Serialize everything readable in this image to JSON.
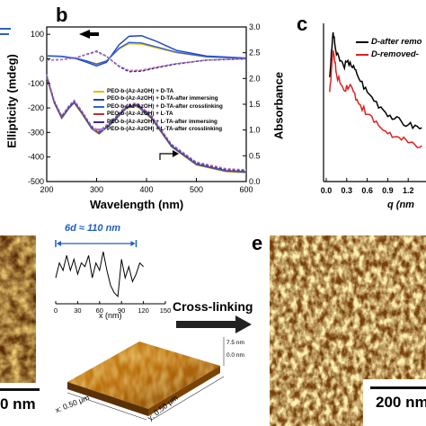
{
  "panel_b": {
    "label": "b",
    "ylabel_left": "Ellipticity (mdeg)",
    "ylabel_right": "Absorbance",
    "xlabel": "Wavelength (nm)",
    "x_ticks": [
      "200",
      "300",
      "400",
      "500",
      "600"
    ],
    "y_left_ticks": [
      "100",
      "0",
      "-100",
      "-200",
      "-300",
      "-400",
      "-500"
    ],
    "y_right_ticks": [
      "3.0",
      "2.5",
      "2.0",
      "1.5",
      "1.0",
      "0.5",
      "0.0"
    ],
    "legend": [
      {
        "text": "PEO-b-(Az-AzOH) + D-TA",
        "color": "#e8b800",
        "dash": false
      },
      {
        "text": "PEO-b-(Az-AzOH) + D-TA-after immersing",
        "color": "#1f3fbf",
        "dash": false
      },
      {
        "text": "PEO-b-(Az-AzOH) + D-TA-after crosslinking",
        "color": "#2f62d8",
        "dash": false
      },
      {
        "text": "PEO-b-(Az-AzOH) + L-TA",
        "color": "#c03030",
        "dash": true
      },
      {
        "text": "PEO-b-(Az-AzOH) + L-TA-after immersing",
        "color": "#3a2a90",
        "dash": true
      },
      {
        "text": "PEO-b-(Az-AzOH) + L-TA-after crosslinking",
        "color": "#b070c0",
        "dash": true
      }
    ]
  },
  "panel_c": {
    "label": "c",
    "legend": [
      {
        "text": "D-after remo",
        "color": "#000000"
      },
      {
        "text": "D-removed-",
        "color": "#e02020"
      }
    ],
    "x_ticks": [
      "0.0",
      "0.3",
      "0.6",
      "0.9",
      "1.2"
    ],
    "xlabel": "q (nm"
  },
  "panel_d": {
    "scale_label": "0 nm",
    "annotation": "6d ≈ 110 nm",
    "profile_xlabel": "x (nm)",
    "profile_x_ticks": [
      "0",
      "30",
      "60",
      "90",
      "120",
      "150"
    ],
    "z_ticks": [
      "7.5 nm",
      "0.0 nm"
    ],
    "axis_x": "x: 0.50 μm",
    "axis_y": "y: 0.50 μm"
  },
  "arrow_label": "Cross-linking",
  "panel_e": {
    "label": "e",
    "scale_label": "200 nm"
  },
  "chart_data": [
    {
      "type": "line",
      "title": "",
      "xlabel": "Wavelength (nm)",
      "ylabel": "Ellipticity (mdeg)",
      "y2label": "Absorbance",
      "xlim": [
        200,
        600
      ],
      "ylim": [
        -500,
        130
      ],
      "y2lim": [
        0.0,
        3.0
      ],
      "series": [
        {
          "name": "PEO-b-(Az-AzOH) + D-TA",
          "axis": "left",
          "x": [
            200,
            230,
            260,
            280,
            300,
            320,
            345,
            365,
            390,
            420,
            460,
            520,
            600
          ],
          "values": [
            12,
            10,
            2,
            -8,
            -20,
            -8,
            40,
            62,
            60,
            45,
            25,
            8,
            2
          ]
        },
        {
          "name": "PEO-b-(Az-AzOH) + D-TA-after immersing",
          "axis": "left",
          "x": [
            200,
            230,
            260,
            280,
            300,
            320,
            345,
            365,
            390,
            420,
            460,
            520,
            600
          ],
          "values": [
            10,
            8,
            0,
            -12,
            -25,
            -12,
            50,
            80,
            82,
            62,
            30,
            10,
            3
          ]
        },
        {
          "name": "PEO-b-(Az-AzOH) + L-TA",
          "axis": "left",
          "x": [
            200,
            230,
            260,
            280,
            300,
            320,
            345,
            365,
            390,
            420,
            460,
            520,
            600
          ],
          "values": [
            -5,
            -3,
            5,
            18,
            30,
            10,
            -30,
            -50,
            -48,
            -35,
            -20,
            -5,
            0
          ]
        },
        {
          "name": "PEO-b-(Az-AzOH) + D-TA",
          "axis": "right",
          "x": [
            200,
            215,
            230,
            245,
            255,
            270,
            290,
            305,
            330,
            360,
            380,
            410,
            450,
            500,
            560,
            600
          ],
          "values": [
            2.05,
            1.55,
            1.25,
            1.45,
            1.55,
            1.35,
            1.05,
            0.95,
            1.15,
            1.45,
            1.5,
            1.25,
            0.7,
            0.35,
            0.22,
            0.2
          ]
        }
      ]
    },
    {
      "type": "line",
      "title": "",
      "xlabel": "q (nm",
      "x_ticks": [
        "0.0",
        "0.3",
        "0.6",
        "0.9",
        "1.2"
      ],
      "series": [
        {
          "name": "D-after remo",
          "x": [
            0.05,
            0.1,
            0.15,
            0.25,
            0.35,
            0.45,
            0.6,
            0.8,
            1.0,
            1.2,
            1.4
          ],
          "values": [
            0.7,
            1.0,
            0.85,
            0.78,
            0.8,
            0.72,
            0.6,
            0.5,
            0.42,
            0.38,
            0.36
          ]
        },
        {
          "name": "D-removed-",
          "x": [
            0.05,
            0.1,
            0.15,
            0.25,
            0.35,
            0.45,
            0.6,
            0.8,
            1.0,
            1.2,
            1.4
          ],
          "values": [
            0.6,
            0.88,
            0.72,
            0.62,
            0.65,
            0.55,
            0.45,
            0.36,
            0.3,
            0.26,
            0.24
          ]
        }
      ]
    },
    {
      "type": "line",
      "title": "",
      "xlabel": "x (nm)",
      "xlim": [
        0,
        150
      ],
      "series": [
        {
          "name": "",
          "x": [
            0,
            5,
            10,
            15,
            20,
            25,
            30,
            35,
            40,
            45,
            50,
            55,
            60,
            65,
            70,
            75,
            80,
            85,
            90,
            95,
            100,
            105,
            110,
            115,
            120
          ],
          "values": [
            3,
            5,
            4,
            6,
            4,
            5.5,
            3.5,
            5,
            4.5,
            6,
            3,
            5,
            4,
            6.5,
            4,
            2,
            1,
            0.5,
            5.5,
            3,
            4.5,
            2.5,
            3.5,
            5,
            4.5
          ]
        }
      ]
    }
  ]
}
